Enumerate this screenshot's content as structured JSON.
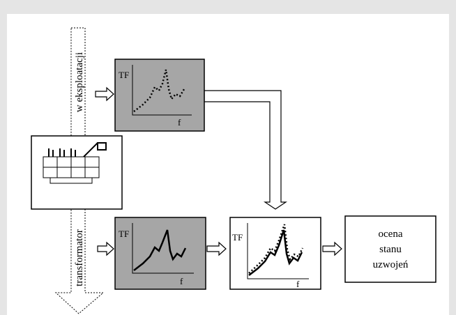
{
  "labels": {
    "in_operation": "w eksploatacji",
    "transformer": "transformator"
  },
  "panels": [
    {
      "y_label": "TF",
      "x_label": "f"
    },
    {
      "y_label": "TF",
      "x_label": "f"
    },
    {
      "y_label": "TF",
      "x_label": "f"
    }
  ],
  "result": {
    "lines": [
      "ocena",
      "stanu",
      "uzwojeń"
    ]
  }
}
